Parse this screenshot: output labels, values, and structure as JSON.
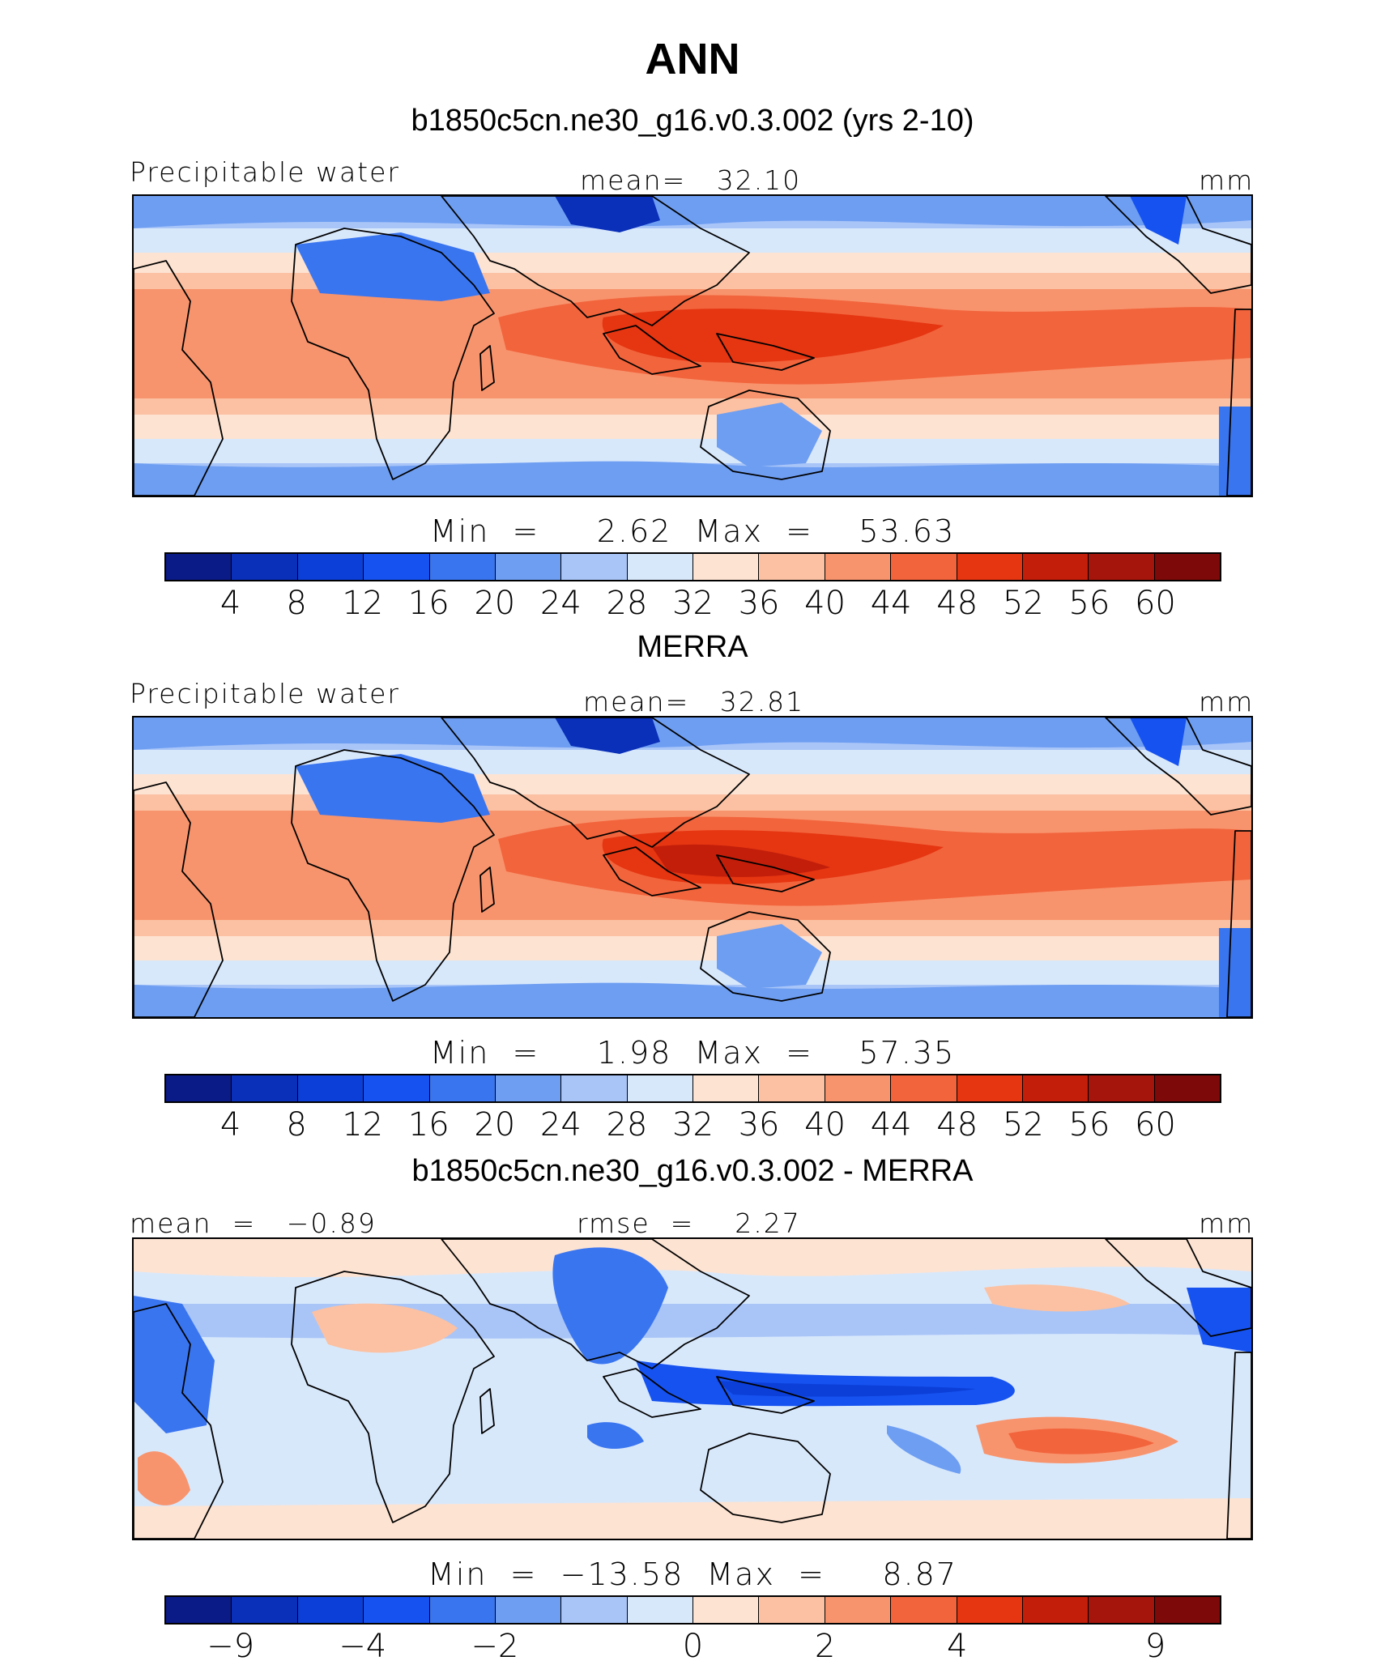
{
  "title": "ANN",
  "colors": {
    "abs": [
      "#0a1a86",
      "#0a2fb8",
      "#0c3fd8",
      "#1652f0",
      "#3a75f0",
      "#6e9ef2",
      "#a9c5f8",
      "#d8e8fb",
      "#fde3d2",
      "#fbc1a2",
      "#f8946d",
      "#f2643c",
      "#e53511",
      "#c21e0a",
      "#a6150b",
      "#7d0a08"
    ],
    "diff": [
      "#0a1a86",
      "#0a2fb8",
      "#0c3fd8",
      "#1652f0",
      "#3a75f0",
      "#6e9ef2",
      "#a9c5f8",
      "#d8e8fb",
      "#fde3d2",
      "#fbc1a2",
      "#f8946d",
      "#f2643c",
      "#e53511",
      "#c21e0a",
      "#a6150b",
      "#7d0a08"
    ]
  },
  "chart_data": [
    {
      "type": "heatmap",
      "title": "b1850c5cn.ne30_g16.v0.3.002 (yrs 2-10)",
      "left_label": "Precipitable water",
      "center_label": "mean=   32.10",
      "unit": "mm",
      "min_text": "Min  =     2.62  Max  =    53.63",
      "ticks": [
        "4",
        "8",
        "12",
        "16",
        "20",
        "24",
        "28",
        "32",
        "36",
        "40",
        "44",
        "48",
        "52",
        "56",
        "60"
      ],
      "mean": 32.1,
      "min": 2.62,
      "max": 53.63
    },
    {
      "type": "heatmap",
      "title": "MERRA",
      "left_label": "Precipitable water",
      "center_label": "mean=   32.81",
      "unit": "mm",
      "min_text": "Min  =     1.98  Max  =    57.35",
      "ticks": [
        "4",
        "8",
        "12",
        "16",
        "20",
        "24",
        "28",
        "32",
        "36",
        "40",
        "44",
        "48",
        "52",
        "56",
        "60"
      ],
      "mean": 32.81,
      "min": 1.98,
      "max": 57.35
    },
    {
      "type": "heatmap",
      "title": "b1850c5cn.ne30_g16.v0.3.002 - MERRA",
      "left_label": "mean  =   −0.89",
      "center_label": "rmse  =    2.27",
      "unit": "mm",
      "min_text": "Min  =  −13.58  Max  =     8.87",
      "ticks": [
        "−9",
        "−4",
        "−2",
        "0",
        "2",
        "4",
        "9"
      ],
      "mean": -0.89,
      "rmse": 2.27,
      "min": -13.58,
      "max": 8.87
    }
  ]
}
